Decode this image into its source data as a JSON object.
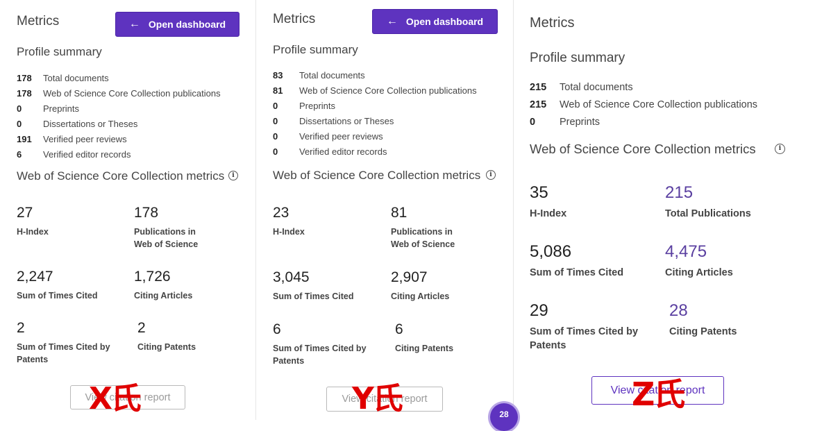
{
  "panels": [
    {
      "metrics_title": "Metrics",
      "open_dashboard": "Open dashboard",
      "profile_title": "Profile summary",
      "stats": [
        {
          "num": "178",
          "label": "Total documents"
        },
        {
          "num": "178",
          "label": "Web of Science Core Collection publications"
        },
        {
          "num": "0",
          "label": "Preprints"
        },
        {
          "num": "0",
          "label": "Dissertations or Theses"
        },
        {
          "num": "191",
          "label": "Verified peer reviews"
        },
        {
          "num": "6",
          "label": "Verified editor records"
        }
      ],
      "wos_title": "Web of Science Core Collection metrics",
      "metrics": [
        {
          "value": "27",
          "label": "H-Index"
        },
        {
          "value": "178",
          "label": "Publications in Web of Science"
        },
        {
          "value": "2,247",
          "label": "Sum of Times Cited"
        },
        {
          "value": "1,726",
          "label": "Citing Articles"
        },
        {
          "value": "2",
          "label": "Sum of Times Cited by Patents"
        },
        {
          "value": "2",
          "label": "Citing Patents"
        }
      ],
      "report_button": "View citation report",
      "overlay": "X氏"
    },
    {
      "metrics_title": "Metrics",
      "open_dashboard": "Open dashboard",
      "profile_title": "Profile summary",
      "stats": [
        {
          "num": "83",
          "label": "Total documents"
        },
        {
          "num": "81",
          "label": "Web of Science Core Collection publications"
        },
        {
          "num": "0",
          "label": "Preprints"
        },
        {
          "num": "0",
          "label": "Dissertations or Theses"
        },
        {
          "num": "0",
          "label": "Verified peer reviews"
        },
        {
          "num": "0",
          "label": "Verified editor records"
        }
      ],
      "wos_title": "Web of Science Core Collection metrics",
      "metrics": [
        {
          "value": "23",
          "label": "H-Index"
        },
        {
          "value": "81",
          "label": "Publications in Web of Science"
        },
        {
          "value": "3,045",
          "label": "Sum of Times Cited"
        },
        {
          "value": "2,907",
          "label": "Citing Articles"
        },
        {
          "value": "6",
          "label": "Sum of Times Cited by Patents"
        },
        {
          "value": "6",
          "label": "Citing Patents"
        }
      ],
      "report_button": "View citation report",
      "overlay": "Y氏",
      "page_badge": "28"
    },
    {
      "metrics_title": "Metrics",
      "profile_title": "Profile summary",
      "stats": [
        {
          "num": "215",
          "label": "Total documents"
        },
        {
          "num": "215",
          "label": "Web of Science Core Collection publications"
        },
        {
          "num": "0",
          "label": "Preprints"
        }
      ],
      "wos_title": "Web of Science Core Collection metrics",
      "metrics": [
        {
          "value": "35",
          "label": "H-Index"
        },
        {
          "value": "215",
          "label": "Total Publications"
        },
        {
          "value": "5,086",
          "label": "Sum of Times Cited"
        },
        {
          "value": "4,475",
          "label": "Citing Articles"
        },
        {
          "value": "29",
          "label": "Sum of Times Cited by Patents"
        },
        {
          "value": "28",
          "label": "Citing Patents"
        }
      ],
      "report_button": "View citation report",
      "overlay": "Z氏"
    }
  ],
  "icons": {
    "arrow": "arrow-left-icon",
    "info": "info-icon"
  },
  "colors": {
    "accent": "#5e33bf",
    "overlay_red": "#e00000",
    "purple_value": "#5a3fa0"
  }
}
